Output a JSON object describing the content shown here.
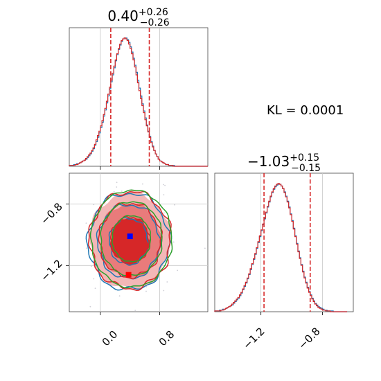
{
  "chart_data": [
    {
      "type": "histogram",
      "panel": "marginal-x",
      "title": {
        "value": "0.40",
        "plus": "+0.26",
        "minus": "−0.26"
      },
      "xlim": [
        -0.42,
        1.45
      ],
      "quantile_lines": [
        0.14,
        0.66
      ],
      "bin_edges_start": -0.42,
      "bin_width": 0.02,
      "series": [
        {
          "name": "",
          "color": "#1f77b4",
          "values": [
            1,
            1,
            1,
            2,
            2,
            3,
            3,
            4,
            5,
            6,
            7,
            8,
            10,
            12,
            14,
            17,
            20,
            24,
            28,
            33,
            38,
            44,
            50,
            57,
            64,
            72,
            80,
            88,
            96,
            104,
            112,
            120,
            127,
            133,
            138,
            142,
            145,
            146,
            146,
            144,
            141,
            136,
            130,
            123,
            115,
            107,
            98,
            89,
            80,
            71,
            63,
            55,
            47,
            40,
            34,
            28,
            23,
            18,
            14,
            11,
            8,
            6,
            5,
            4,
            3,
            2,
            2,
            1,
            1,
            1,
            1,
            0,
            0,
            0,
            0,
            0,
            0,
            0,
            0,
            0,
            0,
            0,
            0,
            0,
            0,
            0,
            0,
            0,
            0,
            0,
            0,
            0,
            0,
            0
          ]
        },
        {
          "name": "",
          "color": "#d62728",
          "values": [
            1,
            1,
            1,
            1,
            2,
            2,
            3,
            4,
            5,
            6,
            7,
            9,
            11,
            13,
            15,
            18,
            21,
            25,
            30,
            35,
            40,
            46,
            52,
            59,
            66,
            74,
            82,
            90,
            98,
            106,
            114,
            121,
            128,
            134,
            139,
            143,
            145,
            146,
            145,
            143,
            139,
            134,
            128,
            121,
            113,
            104,
            95,
            86,
            77,
            69,
            61,
            53,
            46,
            39,
            33,
            27,
            22,
            18,
            14,
            11,
            8,
            6,
            5,
            4,
            3,
            2,
            2,
            1,
            1,
            1,
            0,
            0,
            0,
            0,
            0,
            0,
            0,
            0,
            0,
            0,
            0,
            0,
            0,
            0,
            0,
            0,
            0,
            0,
            0,
            0,
            0,
            0,
            0,
            0
          ]
        }
      ],
      "xticks": [
        0.0,
        0.8
      ]
    },
    {
      "type": "histogram",
      "panel": "marginal-y",
      "title": {
        "value": "−1.03",
        "plus": "+0.15",
        "minus": "−0.15"
      },
      "xlim": [
        -1.5,
        -0.6
      ],
      "quantile_lines": [
        -1.18,
        -0.88
      ],
      "bin_edges_start": -1.5,
      "bin_width": 0.01,
      "series": [
        {
          "name": "",
          "color": "#1f77b4",
          "values": [
            1,
            1,
            1,
            2,
            2,
            3,
            3,
            4,
            5,
            6,
            7,
            8,
            10,
            12,
            14,
            16,
            19,
            22,
            26,
            30,
            34,
            39,
            44,
            50,
            56,
            62,
            68,
            75,
            82,
            89,
            96,
            103,
            110,
            117,
            124,
            130,
            136,
            141,
            145,
            148,
            150,
            151,
            151,
            149,
            146,
            142,
            137,
            131,
            124,
            116,
            108,
            99,
            90,
            81,
            72,
            64,
            56,
            48,
            41,
            35,
            29,
            24,
            20,
            16,
            13,
            10,
            8,
            6,
            5,
            4,
            3,
            2,
            2,
            1,
            1,
            1,
            1,
            0,
            0,
            0,
            0,
            0,
            0,
            0,
            0,
            0
          ]
        },
        {
          "name": "",
          "color": "#d62728",
          "values": [
            1,
            1,
            1,
            1,
            2,
            2,
            3,
            4,
            5,
            6,
            7,
            9,
            11,
            13,
            15,
            17,
            20,
            23,
            27,
            31,
            35,
            40,
            45,
            51,
            57,
            63,
            69,
            76,
            83,
            90,
            97,
            104,
            111,
            118,
            125,
            131,
            137,
            142,
            146,
            149,
            151,
            152,
            151,
            149,
            146,
            141,
            136,
            130,
            123,
            115,
            107,
            98,
            89,
            80,
            71,
            63,
            55,
            47,
            40,
            34,
            28,
            23,
            19,
            15,
            12,
            9,
            7,
            5,
            4,
            3,
            2,
            2,
            1,
            1,
            1,
            0,
            0,
            0,
            0,
            0,
            0,
            0,
            0,
            0,
            0,
            0
          ]
        }
      ],
      "xticks": [
        -1.2,
        -0.8
      ]
    },
    {
      "type": "contour",
      "panel": "joint",
      "xlim": [
        -0.42,
        1.45
      ],
      "ylim": [
        -1.5,
        -0.6
      ],
      "xticks": [
        0.0,
        0.8
      ],
      "yticks": [
        -0.8,
        -1.2
      ],
      "center": [
        0.4,
        -1.03
      ],
      "sigma": [
        0.26,
        0.15
      ],
      "levels_sigma": [
        1.0,
        1.6,
        2.1
      ],
      "markers": [
        {
          "color": "#0000ff",
          "x": 0.4,
          "y": -1.01
        },
        {
          "color": "#ff0000",
          "x": 0.38,
          "y": -1.26
        }
      ],
      "contour_colors": [
        "#1f77b4",
        "#d62728",
        "#2ca02c"
      ],
      "fill_colors": [
        "#f3b7b7",
        "#e97b7b",
        "#d62728"
      ]
    }
  ],
  "annotation": {
    "kl_text": "KL = 0.0001"
  },
  "tick_text": {
    "x_joint": [
      "0.0",
      "0.8"
    ],
    "y_joint": [
      "−0.8",
      "−1.2"
    ],
    "x_marg_y": [
      "−1.2",
      "−0.8"
    ]
  }
}
